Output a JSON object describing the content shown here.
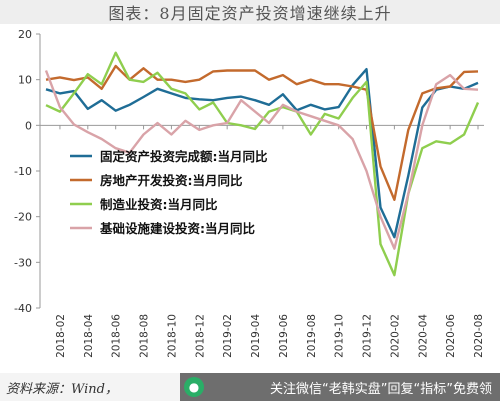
{
  "header": {
    "title": "图表：8月固定资产投资增速继续上升"
  },
  "footer": {
    "source": "资料来源：Wind，",
    "watermark": "关注微信“老韩实盘”回复“指标”免费领",
    "watermark_icon": "wechat-icon"
  },
  "chart_data": {
    "type": "line",
    "title": "图表：8月固定资产投资增速继续上升",
    "xlabel": "",
    "ylabel": "",
    "ylim": [
      -40,
      20
    ],
    "yticks": [
      20,
      10,
      0,
      -10,
      -20,
      -30,
      -40
    ],
    "x": [
      "2018-01",
      "2018-02",
      "2018-03",
      "2018-04",
      "2018-05",
      "2018-06",
      "2018-07",
      "2018-08",
      "2018-09",
      "2018-10",
      "2018-11",
      "2018-12",
      "2019-01",
      "2019-02",
      "2019-03",
      "2019-04",
      "2019-05",
      "2019-06",
      "2019-07",
      "2019-08",
      "2019-09",
      "2019-10",
      "2019-11",
      "2019-12",
      "2020-01",
      "2020-02",
      "2020-03",
      "2020-04",
      "2020-05",
      "2020-06",
      "2020-07",
      "2020-08"
    ],
    "xtick_labels": [
      "2018-02",
      "2018-04",
      "2018-06",
      "2018-08",
      "2018-10",
      "2018-12",
      "2019-02",
      "2019-04",
      "2019-06",
      "2019-08",
      "2019-10",
      "2019-12",
      "2020-02",
      "2020-04",
      "2020-06",
      "2020-08"
    ],
    "legend_position": "lower-left",
    "grid": false,
    "series": [
      {
        "name": "固定资产投资完成额:当月同比",
        "color": "#1f6d96",
        "values": [
          7.9,
          7.0,
          7.5,
          3.6,
          5.5,
          3.2,
          4.5,
          6.2,
          8.0,
          7.0,
          6.0,
          5.7,
          5.5,
          6.0,
          6.3,
          5.5,
          4.5,
          6.8,
          3.3,
          4.5,
          3.5,
          4.0,
          8.8,
          12.3,
          -18.0,
          -24.5,
          -11.0,
          3.9,
          7.8,
          8.5,
          8.0,
          9.3
        ]
      },
      {
        "name": "房地产开发投资:当月同比",
        "color": "#c36a2d",
        "values": [
          10.0,
          10.5,
          9.9,
          10.5,
          8.0,
          13.0,
          10.0,
          12.5,
          10.0,
          10.0,
          9.5,
          10.0,
          11.8,
          12.0,
          12.0,
          12.0,
          10.0,
          11.0,
          9.0,
          10.0,
          9.0,
          9.0,
          8.5,
          7.8,
          -9.0,
          -16.3,
          -1.0,
          7.0,
          8.1,
          8.5,
          11.7,
          11.8
        ]
      },
      {
        "name": "制造业投资:当月同比",
        "color": "#8fce4e",
        "values": [
          4.4,
          3.0,
          7.0,
          11.2,
          9.0,
          15.9,
          10.0,
          9.5,
          11.5,
          8.0,
          7.0,
          3.5,
          5.0,
          0.5,
          0.0,
          -0.8,
          3.0,
          4.0,
          3.0,
          -2.0,
          2.5,
          1.5,
          6.0,
          9.5,
          -26.0,
          -32.8,
          -15.0,
          -5.0,
          -3.5,
          -4.0,
          -2.0,
          5.0
        ]
      },
      {
        "name": "基础设施建设投资:当月同比",
        "color": "#d9a3a8",
        "values": [
          12.0,
          4.0,
          0.2,
          -1.5,
          -3.0,
          -5.0,
          -6.0,
          -2.0,
          0.5,
          -2.0,
          1.0,
          -1.0,
          0.0,
          0.5,
          5.5,
          3.0,
          0.5,
          4.5,
          3.0,
          2.0,
          1.0,
          0.0,
          -3.0,
          -10.0,
          -20.0,
          -27.0,
          -15.0,
          0.0,
          9.0,
          11.0,
          8.0,
          7.8
        ]
      }
    ]
  }
}
